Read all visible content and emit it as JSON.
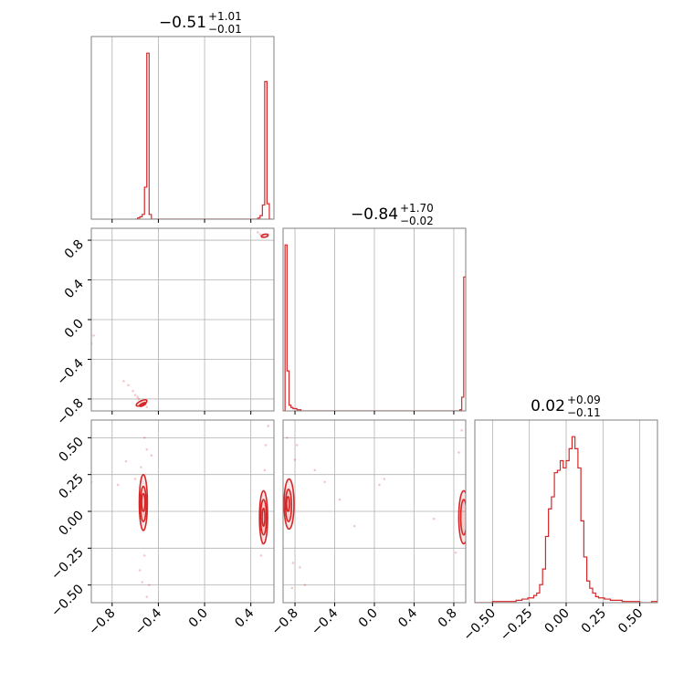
{
  "colors": {
    "line": "#d62728",
    "grid": "#b0b0b0",
    "frame": "#808080",
    "background": "#ffffff"
  },
  "titles": {
    "p0": {
      "median": "−0.51",
      "plus": "+1.01",
      "minus": "−0.01"
    },
    "p1": {
      "median": "−0.84",
      "plus": "+1.70",
      "minus": "−0.02"
    },
    "p2": {
      "median": "0.02",
      "plus": "+0.09",
      "minus": "−0.11"
    }
  },
  "chart_data": {
    "type": "corner",
    "parameters": [
      {
        "range": [
          -0.98,
          0.6
        ],
        "ticks": [
          -0.8,
          -0.4,
          0.0,
          0.4
        ],
        "tick_labels": [
          "−0.8",
          "−0.4",
          "0.0",
          "0.4"
        ]
      },
      {
        "range": [
          -0.92,
          0.92
        ],
        "ticks": [
          -0.8,
          -0.4,
          0.0,
          0.4,
          0.8
        ],
        "tick_labels": [
          "−0.8",
          "−0.4",
          "0.0",
          "0.4",
          "0.8"
        ]
      },
      {
        "range": [
          -0.62,
          0.62
        ],
        "ticks": [
          -0.5,
          -0.25,
          0.0,
          0.25,
          0.5
        ],
        "tick_labels": [
          "−0.50",
          "−0.25",
          "0.00",
          "0.25",
          "0.50"
        ]
      }
    ],
    "histograms": [
      {
        "bins": [
          -0.6,
          -0.58,
          -0.56,
          -0.54,
          -0.52,
          -0.5,
          -0.48,
          -0.46,
          0.44,
          0.46,
          0.48,
          0.5,
          0.52,
          0.54,
          0.56
        ],
        "counts": [
          0,
          1,
          2,
          4,
          27,
          140,
          4,
          0,
          0,
          1,
          3,
          12,
          116,
          13,
          0
        ]
      },
      {
        "bins": [
          -0.92,
          -0.9,
          -0.88,
          -0.86,
          -0.84,
          -0.82,
          -0.8,
          -0.78,
          -0.76,
          -0.74,
          0.84,
          0.86,
          0.88,
          0.9
        ],
        "counts": [
          0,
          145,
          35,
          5,
          3,
          2,
          2,
          1,
          1,
          0,
          0,
          1,
          12,
          117
        ]
      },
      {
        "bins": [
          -0.62,
          -0.58,
          -0.54,
          -0.5,
          -0.46,
          -0.42,
          -0.38,
          -0.34,
          -0.3,
          -0.26,
          -0.22,
          -0.2,
          -0.18,
          -0.16,
          -0.14,
          -0.12,
          -0.1,
          -0.08,
          -0.06,
          -0.04,
          -0.02,
          0.0,
          0.02,
          0.04,
          0.06,
          0.08,
          0.1,
          0.12,
          0.14,
          0.16,
          0.18,
          0.2,
          0.22,
          0.26,
          0.3,
          0.34,
          0.38,
          0.42,
          0.46,
          0.5,
          0.54,
          0.58,
          0.62
        ],
        "counts": [
          0,
          0,
          0,
          1,
          1,
          1,
          1,
          2,
          3,
          4,
          6,
          8,
          15,
          28,
          55,
          78,
          88,
          108,
          110,
          118,
          112,
          118,
          128,
          138,
          128,
          112,
          68,
          38,
          18,
          12,
          8,
          5,
          4,
          3,
          2,
          2,
          1,
          1,
          1,
          0,
          0,
          1,
          0
        ]
      }
    ],
    "panels_2d": [
      {
        "row": 1,
        "col": 0,
        "contours": [
          {
            "cx": -0.545,
            "cy": -0.84,
            "rx": 0.05,
            "ry": 0.022,
            "angle": 25
          },
          {
            "cx": -0.535,
            "cy": -0.855,
            "rx": 0.03,
            "ry": 0.012,
            "angle": 25
          },
          {
            "cx": 0.52,
            "cy": 0.845,
            "rx": 0.03,
            "ry": 0.015,
            "angle": 10
          }
        ],
        "scatter": [
          [
            -0.6,
            -0.76
          ],
          [
            -0.58,
            -0.78
          ],
          [
            -0.62,
            -0.72
          ],
          [
            -0.57,
            -0.8
          ],
          [
            -0.66,
            -0.66
          ],
          [
            -0.7,
            -0.62
          ],
          [
            -0.96,
            -0.16
          ],
          [
            -0.98,
            -0.24
          ],
          [
            -0.55,
            -0.82
          ],
          [
            -0.5,
            -0.88
          ],
          [
            0.48,
            0.86
          ],
          [
            0.5,
            0.84
          ],
          [
            0.55,
            0.86
          ],
          [
            0.46,
            0.88
          ]
        ]
      },
      {
        "row": 2,
        "col": 0,
        "contours": [
          {
            "cx": -0.53,
            "cy": 0.06,
            "rx": 0.035,
            "ry": 0.19,
            "angle": 0
          },
          {
            "cx": -0.53,
            "cy": 0.05,
            "rx": 0.025,
            "ry": 0.12,
            "angle": 0
          },
          {
            "cx": -0.53,
            "cy": 0.06,
            "rx": 0.015,
            "ry": 0.06,
            "angle": 0
          },
          {
            "cx": 0.51,
            "cy": -0.04,
            "rx": 0.035,
            "ry": 0.18,
            "angle": 0
          },
          {
            "cx": 0.51,
            "cy": -0.04,
            "rx": 0.025,
            "ry": 0.12,
            "angle": 0
          },
          {
            "cx": 0.51,
            "cy": -0.04,
            "rx": 0.012,
            "ry": 0.06,
            "angle": 0
          }
        ],
        "scatter": [
          [
            -0.55,
            0.3
          ],
          [
            -0.5,
            0.42
          ],
          [
            -0.52,
            -0.3
          ],
          [
            -0.48,
            -0.5
          ],
          [
            -0.56,
            -0.4
          ],
          [
            -0.6,
            0.22
          ],
          [
            -0.75,
            0.18
          ],
          [
            -0.68,
            0.34
          ],
          [
            -0.46,
            0.38
          ],
          [
            -0.54,
            -0.48
          ],
          [
            -0.98,
            0.2
          ],
          [
            0.53,
            0.45
          ],
          [
            0.5,
            -0.22
          ],
          [
            0.52,
            0.28
          ],
          [
            0.49,
            -0.3
          ],
          [
            0.55,
            0.58
          ],
          [
            -0.5,
            -0.58
          ],
          [
            -0.52,
            0.5
          ]
        ]
      },
      {
        "row": 2,
        "col": 1,
        "contours": [
          {
            "cx": -0.86,
            "cy": 0.05,
            "rx": 0.05,
            "ry": 0.17,
            "angle": 0
          },
          {
            "cx": -0.865,
            "cy": 0.04,
            "rx": 0.03,
            "ry": 0.11,
            "angle": 0
          },
          {
            "cx": -0.87,
            "cy": 0.05,
            "rx": 0.015,
            "ry": 0.05,
            "angle": 0
          },
          {
            "cx": 0.9,
            "cy": -0.04,
            "rx": 0.05,
            "ry": 0.18,
            "angle": 0
          },
          {
            "cx": 0.9,
            "cy": -0.04,
            "rx": 0.03,
            "ry": 0.12,
            "angle": 0
          }
        ],
        "scatter": [
          [
            -0.8,
            0.35
          ],
          [
            -0.78,
            0.45
          ],
          [
            -0.75,
            -0.38
          ],
          [
            -0.7,
            -0.5
          ],
          [
            -0.82,
            -0.35
          ],
          [
            -0.6,
            0.28
          ],
          [
            -0.5,
            0.2
          ],
          [
            -0.35,
            0.08
          ],
          [
            -0.2,
            -0.1
          ],
          [
            0.05,
            0.18
          ],
          [
            0.1,
            0.22
          ],
          [
            0.85,
            0.4
          ],
          [
            0.82,
            -0.28
          ],
          [
            0.88,
            0.55
          ],
          [
            0.6,
            -0.05
          ],
          [
            -0.88,
            0.5
          ],
          [
            -0.83,
            -0.52
          ]
        ]
      }
    ]
  }
}
